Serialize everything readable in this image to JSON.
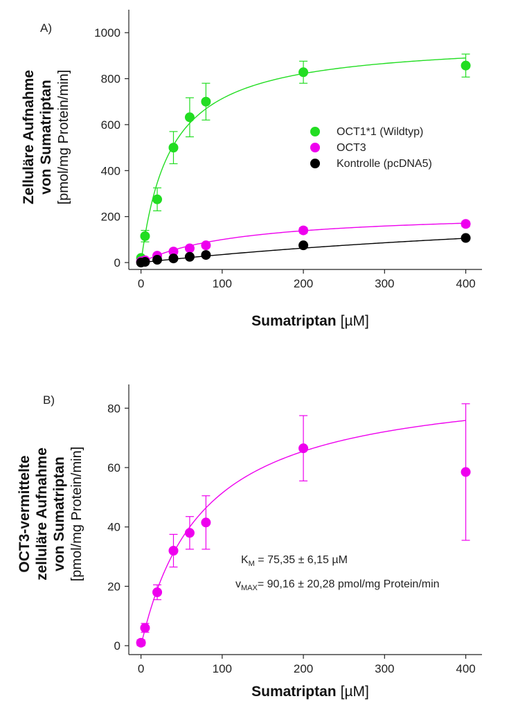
{
  "chart_data": [
    {
      "type": "scatter",
      "panel_label": "A)",
      "ylabel_lines": [
        "Zelluläre Aufnahme",
        "von Sumatriptan"
      ],
      "ylabel_unit": "[pmol/mg Protein/min]",
      "xlabel": "Sumatriptan",
      "xlabel_unit": "[µM]",
      "xlim": [
        -15,
        420
      ],
      "ylim": [
        -30,
        1100
      ],
      "xticks": [
        0,
        100,
        200,
        300,
        400
      ],
      "yticks": [
        0,
        200,
        400,
        600,
        800,
        1000
      ],
      "legend_position": "right",
      "series": [
        {
          "name": "OCT1*1 (Wildtyp)",
          "color": "#22dd22",
          "x": [
            0,
            5,
            20,
            40,
            60,
            80,
            200,
            400
          ],
          "y": [
            20,
            115,
            275,
            500,
            632,
            700,
            828,
            857
          ],
          "err": [
            10,
            25,
            50,
            70,
            85,
            80,
            48,
            50
          ],
          "fit": {
            "vmax": 970,
            "km": 36
          }
        },
        {
          "name": "OCT3",
          "color": "#ee00ee",
          "x": [
            0,
            5,
            20,
            40,
            60,
            80,
            200,
            400
          ],
          "y": [
            5,
            10,
            30,
            48,
            62,
            75,
            140,
            168
          ],
          "err": [
            4,
            5,
            8,
            10,
            10,
            10,
            12,
            12
          ],
          "fit": {
            "vmax": 225,
            "km": 125
          }
        },
        {
          "name": "Kontrolle (pcDNA5)",
          "color": "#000000",
          "x": [
            0,
            5,
            20,
            40,
            60,
            80,
            200,
            400
          ],
          "y": [
            0,
            3,
            12,
            18,
            25,
            33,
            75,
            107
          ],
          "err": [
            3,
            3,
            4,
            5,
            5,
            6,
            8,
            10
          ],
          "fit": {
            "vmax": 330,
            "km": 850
          }
        }
      ]
    },
    {
      "type": "scatter",
      "panel_label": "B)",
      "ylabel_lines": [
        "OCT3-vermittelte",
        "zelluläre Aufnahme",
        "von Sumatriptan"
      ],
      "ylabel_unit": "[pmol/mg Protein/min]",
      "xlabel": "Sumatriptan",
      "xlabel_unit": "[µM]",
      "xlim": [
        -15,
        420
      ],
      "ylim": [
        -3,
        88
      ],
      "xticks": [
        0,
        100,
        200,
        300,
        400
      ],
      "yticks": [
        0,
        20,
        40,
        60,
        80
      ],
      "annotations": [
        {
          "sym": "K",
          "sub": "M",
          "text": " = 75,35 ± 6,15 µM"
        },
        {
          "sym": "v",
          "sub": "MAX",
          "text": "= 90,16 ± 20,28 pmol/mg Protein/min"
        }
      ],
      "series": [
        {
          "color": "#ee00ee",
          "x": [
            0,
            5,
            20,
            40,
            60,
            80,
            200,
            400
          ],
          "y": [
            1,
            6,
            18,
            32,
            38,
            41.5,
            66.5,
            58.5
          ],
          "err": [
            1,
            1.5,
            2.5,
            5.5,
            5.5,
            9,
            11,
            23
          ],
          "fit": {
            "vmax": 90.16,
            "km": 75.35
          }
        }
      ]
    }
  ]
}
